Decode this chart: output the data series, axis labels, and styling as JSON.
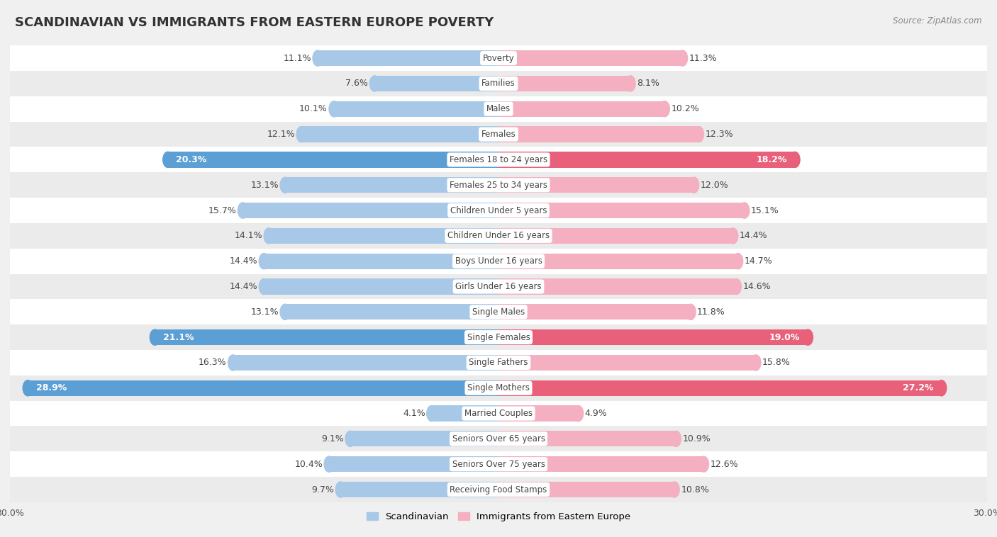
{
  "title": "SCANDINAVIAN VS IMMIGRANTS FROM EASTERN EUROPE POVERTY",
  "source": "Source: ZipAtlas.com",
  "categories": [
    "Poverty",
    "Families",
    "Males",
    "Females",
    "Females 18 to 24 years",
    "Females 25 to 34 years",
    "Children Under 5 years",
    "Children Under 16 years",
    "Boys Under 16 years",
    "Girls Under 16 years",
    "Single Males",
    "Single Females",
    "Single Fathers",
    "Single Mothers",
    "Married Couples",
    "Seniors Over 65 years",
    "Seniors Over 75 years",
    "Receiving Food Stamps"
  ],
  "scandinavian": [
    11.1,
    7.6,
    10.1,
    12.1,
    20.3,
    13.1,
    15.7,
    14.1,
    14.4,
    14.4,
    13.1,
    21.1,
    16.3,
    28.9,
    4.1,
    9.1,
    10.4,
    9.7
  ],
  "eastern_europe": [
    11.3,
    8.1,
    10.2,
    12.3,
    18.2,
    12.0,
    15.1,
    14.4,
    14.7,
    14.6,
    11.8,
    19.0,
    15.8,
    27.2,
    4.9,
    10.9,
    12.6,
    10.8
  ],
  "scandinavian_color": "#a8c8e8",
  "eastern_europe_color": "#f4b0c0",
  "scandinavian_highlight_color": "#5b9fd4",
  "eastern_europe_highlight_color": "#e8607a",
  "highlight_threshold": 18.0,
  "row_light": "#ffffff",
  "row_dark": "#ebebeb",
  "xlim": 30.0,
  "bar_height": 0.62,
  "label_fontsize": 9.0,
  "category_fontsize": 8.5,
  "title_fontsize": 13,
  "legend_fontsize": 9.5,
  "tick_fontsize": 9.0
}
